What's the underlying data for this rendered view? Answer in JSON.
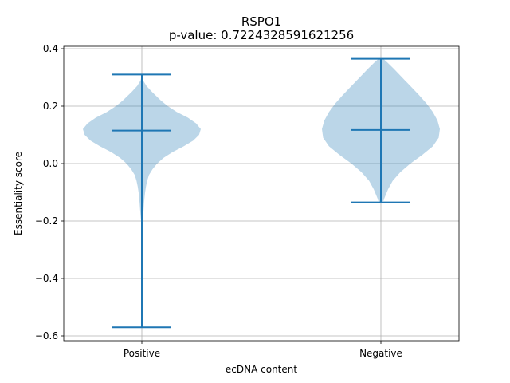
{
  "chart_data": {
    "type": "violin",
    "title": "RSPO1",
    "subtitle": "p-value: 0.7224328591621256",
    "xlabel": "ecDNA content",
    "ylabel": "Essentiality score",
    "ylim": [
      -0.62,
      0.42
    ],
    "yticks": [
      -0.6,
      -0.4,
      -0.2,
      0.0,
      0.2,
      0.4
    ],
    "ytick_labels": [
      "−0.6",
      "−0.4",
      "−0.2",
      "0.0",
      "0.2",
      "0.4"
    ],
    "grid": true,
    "categories": [
      "Positive",
      "Negative"
    ],
    "series": [
      {
        "category": "Positive",
        "max": 0.31,
        "median": 0.115,
        "min": -0.57,
        "density_y": [
          0.31,
          0.29,
          0.27,
          0.25,
          0.22,
          0.2,
          0.18,
          0.16,
          0.14,
          0.12,
          0.1,
          0.08,
          0.06,
          0.04,
          0.02,
          0.0,
          -0.02,
          -0.04,
          -0.06,
          -0.08,
          -0.1,
          -0.12,
          -0.14,
          -0.16,
          -0.18,
          -0.2,
          -0.25,
          -0.3,
          -0.35,
          -0.4,
          -0.45,
          -0.5,
          -0.55,
          -0.57
        ],
        "density_w": [
          0.0,
          0.02,
          0.08,
          0.17,
          0.32,
          0.44,
          0.59,
          0.78,
          0.92,
          1.0,
          0.97,
          0.87,
          0.71,
          0.52,
          0.37,
          0.26,
          0.18,
          0.12,
          0.09,
          0.07,
          0.055,
          0.045,
          0.037,
          0.03,
          0.022,
          0.012,
          0.005,
          0.003,
          0.002,
          0.0015,
          0.001,
          0.001,
          0.001,
          0.0
        ]
      },
      {
        "category": "Negative",
        "max": 0.365,
        "median": 0.117,
        "min": -0.135,
        "density_y": [
          0.365,
          0.35,
          0.33,
          0.3,
          0.27,
          0.24,
          0.21,
          0.18,
          0.15,
          0.12,
          0.09,
          0.06,
          0.03,
          0.0,
          -0.03,
          -0.06,
          -0.09,
          -0.11,
          -0.12,
          -0.13,
          -0.135
        ],
        "density_w": [
          0.04,
          0.12,
          0.22,
          0.36,
          0.5,
          0.64,
          0.77,
          0.88,
          0.96,
          1.0,
          0.98,
          0.88,
          0.7,
          0.5,
          0.33,
          0.2,
          0.12,
          0.08,
          0.06,
          0.045,
          0.0
        ]
      }
    ]
  }
}
